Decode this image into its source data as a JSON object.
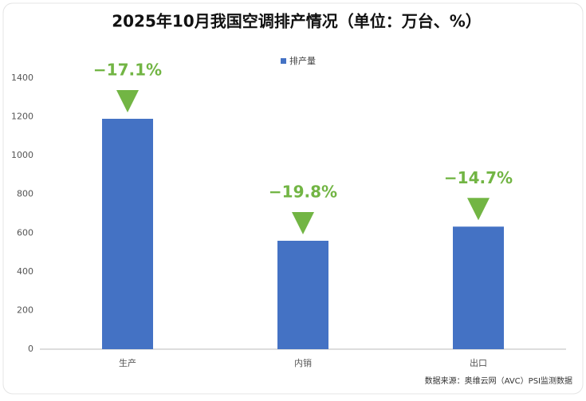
{
  "chart_data": {
    "type": "bar",
    "title": "2025年10月我国空调排产情况（单位：万台、%）",
    "categories": [
      "生产",
      "内销",
      "出口"
    ],
    "series": [
      {
        "name": "排产量",
        "color": "#4472c4",
        "values": [
          1190,
          560,
          633
        ]
      }
    ],
    "changes": [
      -17.1,
      -19.8,
      -14.7
    ],
    "change_labels": [
      "−17.1%",
      "−19.8%",
      "−14.7%"
    ],
    "change_color": "#72b544",
    "ylim": [
      0,
      1400
    ],
    "yticks": [
      0,
      200,
      400,
      600,
      800,
      1000,
      1200,
      1400
    ],
    "grid": false,
    "source": "数据来源：奥维云网（AVC）PSI监测数据"
  }
}
